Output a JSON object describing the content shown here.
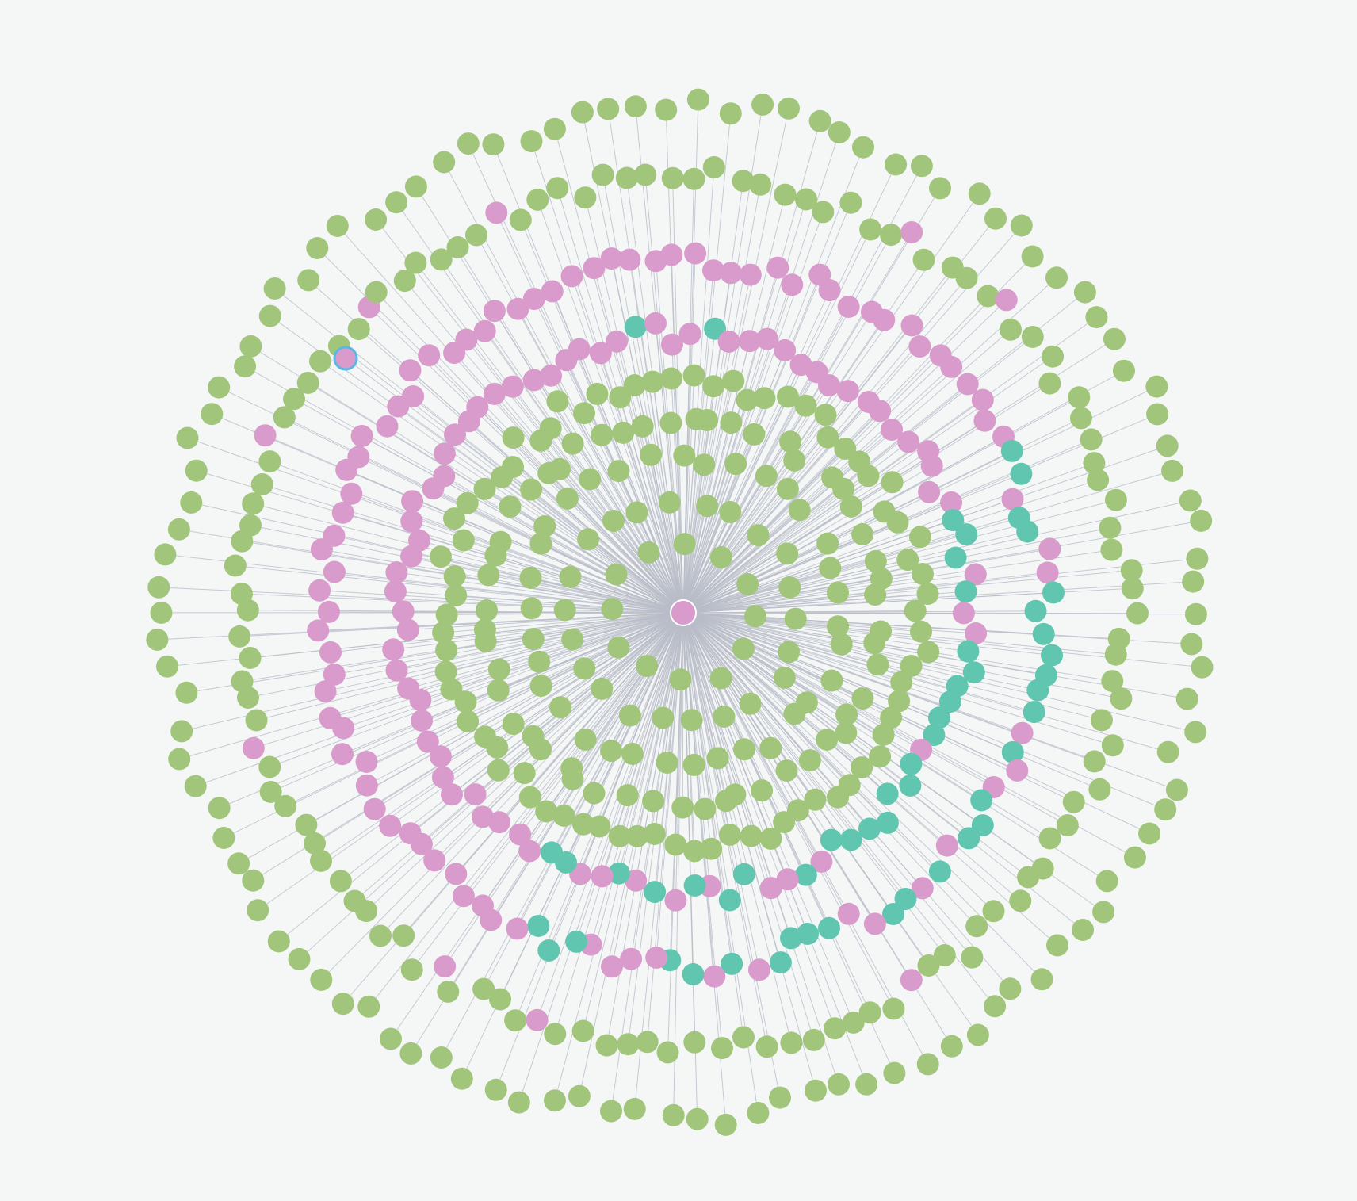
{
  "graph": {
    "layout": "radial",
    "center_color": "#d89bcb",
    "colors": {
      "green": "#a1c57a",
      "pink": "#d89bcb",
      "teal": "#61c6b0",
      "edge": "#b9bdc8",
      "selection": "#5bb8e6"
    },
    "legend": []
  }
}
